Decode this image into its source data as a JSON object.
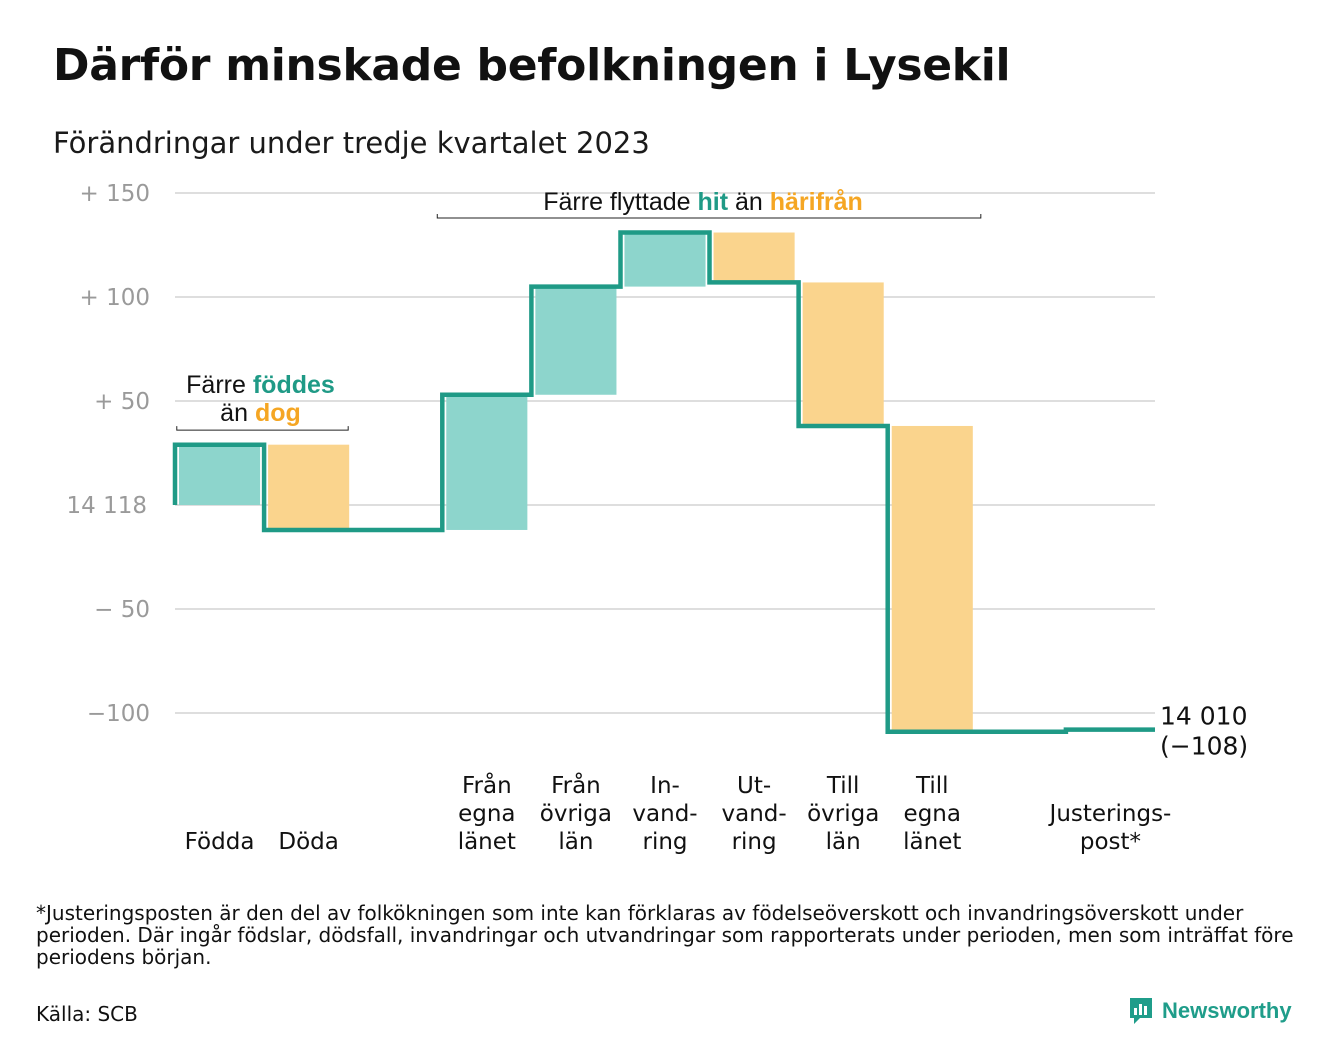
{
  "title": "Därför minskade befolkningen i Lysekil",
  "subtitle": "Förändringar under tredje kvartalet 2023",
  "colors": {
    "line": "#1f9a86",
    "increase": "#8dd5cc",
    "decrease": "#fad48d",
    "accent_green": "#1f9a86",
    "accent_orange": "#f5a623",
    "grid": "#dedede"
  },
  "chart_data": {
    "type": "waterfall",
    "start_value": 14118,
    "end_value": 14010,
    "ylim": [
      -110,
      150
    ],
    "yticks": [
      {
        "value": 150,
        "label": "+  150"
      },
      {
        "value": 100,
        "label": "+  100"
      },
      {
        "value": 50,
        "label": "+  50"
      },
      {
        "value": 0,
        "label": "14  118"
      },
      {
        "value": -50,
        "label": "−  50"
      },
      {
        "value": -100,
        "label": "−100"
      }
    ],
    "steps": [
      {
        "label": [
          "Födda"
        ],
        "change": 29
      },
      {
        "label": [
          "Döda"
        ],
        "change": -41
      },
      {
        "label": [
          ""
        ],
        "change": 0
      },
      {
        "label": [
          "Från",
          "egna",
          "länet"
        ],
        "change": 65
      },
      {
        "label": [
          "Från",
          "övriga",
          "län"
        ],
        "change": 52
      },
      {
        "label": [
          "In-",
          "vand-",
          "ring"
        ],
        "change": 26
      },
      {
        "label": [
          "Ut-",
          "vand-",
          "ring"
        ],
        "change": -24
      },
      {
        "label": [
          "Till",
          "övriga",
          "län"
        ],
        "change": -69
      },
      {
        "label": [
          "Till",
          "egna",
          "länet"
        ],
        "change": -147
      },
      {
        "label": [
          ""
        ],
        "change": 0
      },
      {
        "label": [
          "Justerings-",
          "post*"
        ],
        "change": 1
      }
    ],
    "end_label": [
      "14 010",
      "(−108)"
    ],
    "annotations": [
      {
        "parts": [
          {
            "text": "Färre ",
            "color": "normal"
          },
          {
            "text": "föddes",
            "color": "green"
          }
        ],
        "line2": [
          {
            "text": "än ",
            "color": "normal"
          },
          {
            "text": "dog",
            "color": "orange"
          }
        ]
      },
      {
        "parts": [
          {
            "text": "Färre flyttade ",
            "color": "normal"
          },
          {
            "text": "hit",
            "color": "green"
          },
          {
            "text": " än ",
            "color": "normal"
          },
          {
            "text": "härifrån",
            "color": "orange"
          }
        ]
      }
    ]
  },
  "footnote": "*Justeringsposten är den del av folkökningen som inte kan förklaras av födelseöverskott och invandringsöverskott under perioden. Där ingår födslar, dödsfall, invandringar och utvandringar som rapporterats under perioden, men som inträffat före periodens början.",
  "source": "Källa: SCB",
  "brand": {
    "name": "Newsworthy",
    "icon": "bar-chart-speech-icon"
  }
}
